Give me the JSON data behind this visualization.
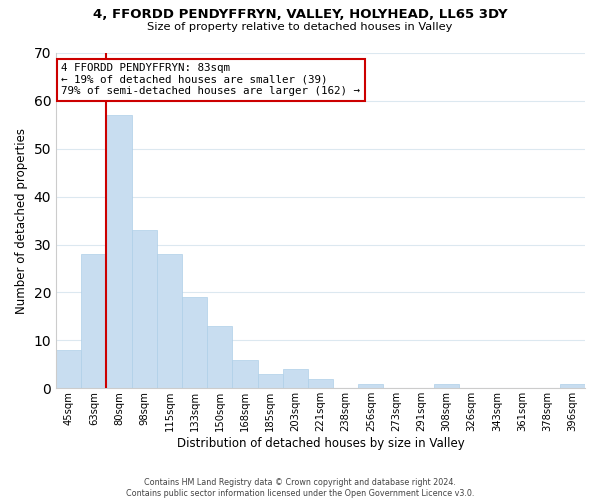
{
  "title": "4, FFORDD PENDYFFRYN, VALLEY, HOLYHEAD, LL65 3DY",
  "subtitle": "Size of property relative to detached houses in Valley",
  "xlabel": "Distribution of detached houses by size in Valley",
  "ylabel": "Number of detached properties",
  "bar_color": "#c8ddf0",
  "bar_edge_color": "#aecfe8",
  "categories": [
    "45sqm",
    "63sqm",
    "80sqm",
    "98sqm",
    "115sqm",
    "133sqm",
    "150sqm",
    "168sqm",
    "185sqm",
    "203sqm",
    "221sqm",
    "238sqm",
    "256sqm",
    "273sqm",
    "291sqm",
    "308sqm",
    "326sqm",
    "343sqm",
    "361sqm",
    "378sqm",
    "396sqm"
  ],
  "values": [
    8,
    28,
    57,
    33,
    28,
    19,
    13,
    6,
    3,
    4,
    2,
    0,
    1,
    0,
    0,
    1,
    0,
    0,
    0,
    0,
    1
  ],
  "ylim": [
    0,
    70
  ],
  "yticks": [
    0,
    10,
    20,
    30,
    40,
    50,
    60,
    70
  ],
  "property_line_x": 1.5,
  "property_line_color": "#cc0000",
  "annotation_title": "4 FFORDD PENDYFFRYN: 83sqm",
  "annotation_line1": "← 19% of detached houses are smaller (39)",
  "annotation_line2": "79% of semi-detached houses are larger (162) →",
  "annotation_box_color": "#ffffff",
  "annotation_box_edgecolor": "#cc0000",
  "footer_line1": "Contains HM Land Registry data © Crown copyright and database right 2024.",
  "footer_line2": "Contains public sector information licensed under the Open Government Licence v3.0.",
  "background_color": "#ffffff",
  "grid_color": "#dce8f0"
}
